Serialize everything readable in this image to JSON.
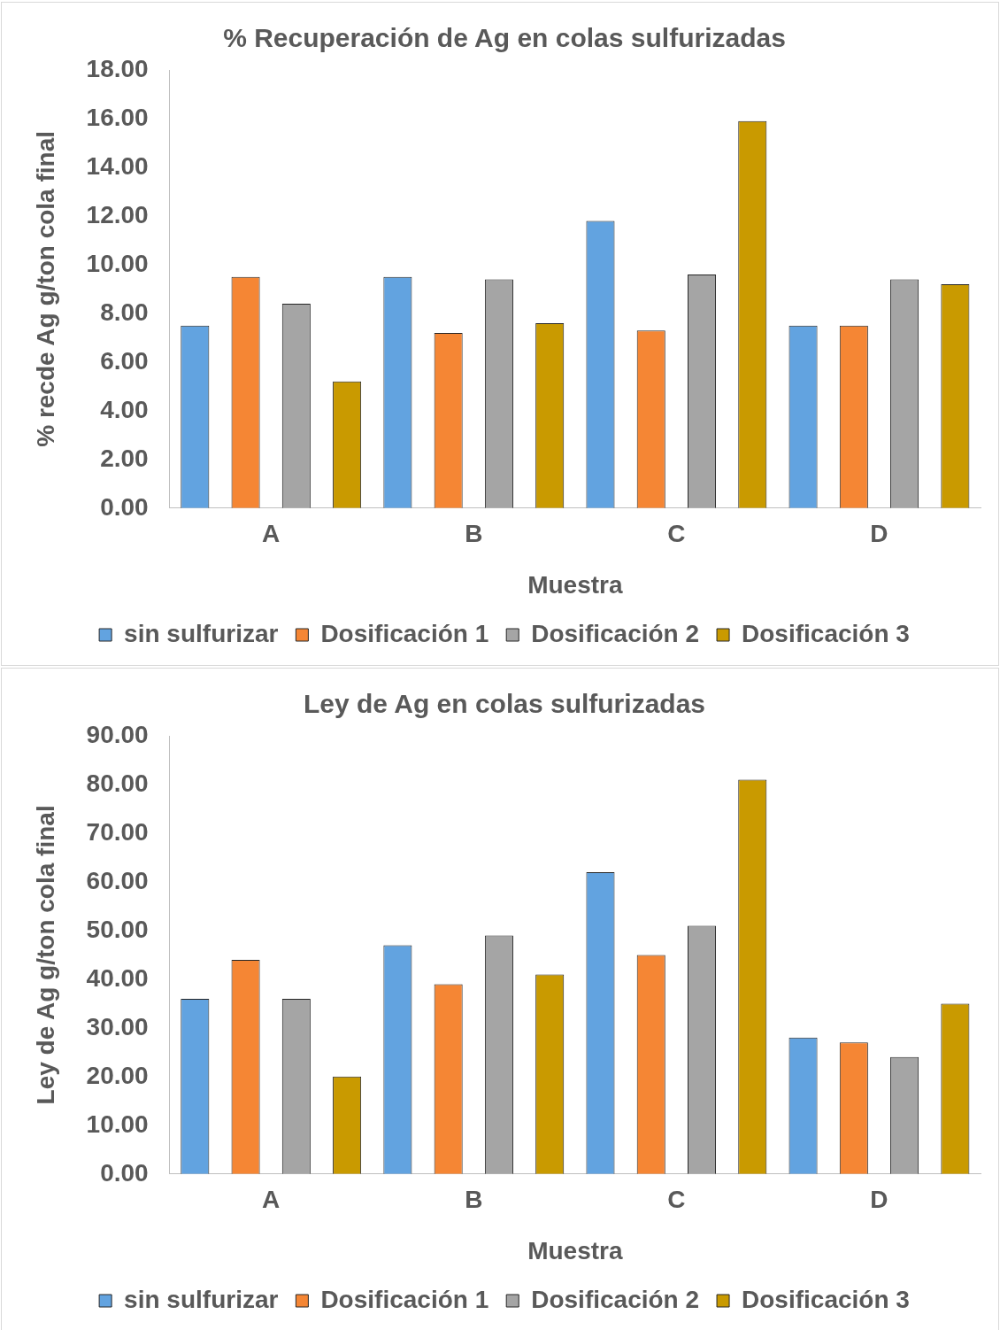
{
  "chart_data": [
    {
      "type": "bar",
      "title": "% Recuperación de Ag en colas sulfurizadas",
      "xlabel": "Muestra",
      "ylabel": "% recde Ag g/ton cola final",
      "categories": [
        "A",
        "B",
        "C",
        "D"
      ],
      "series": [
        {
          "name": "sin sulfurizar",
          "color": "#62a3e0",
          "values": [
            7.5,
            9.5,
            11.8,
            7.5
          ]
        },
        {
          "name": "Dosificación 1",
          "color": "#f58634",
          "values": [
            9.5,
            7.2,
            7.3,
            7.5
          ]
        },
        {
          "name": "Dosificación 2",
          "color": "#a5a5a5",
          "values": [
            8.4,
            9.4,
            9.6,
            9.4
          ]
        },
        {
          "name": "Dosificación 3",
          "color": "#c99a00",
          "values": [
            5.2,
            7.6,
            15.9,
            9.2
          ]
        }
      ],
      "ylim": [
        0,
        18
      ],
      "yticks": [
        {
          "value": 0,
          "label": "0.00"
        },
        {
          "value": 2,
          "label": "2.00"
        },
        {
          "value": 4,
          "label": "4.00"
        },
        {
          "value": 6,
          "label": "6.00"
        },
        {
          "value": 8,
          "label": "8.00"
        },
        {
          "value": 10,
          "label": "10.00"
        },
        {
          "value": 12,
          "label": "12.00"
        },
        {
          "value": 14,
          "label": "14.00"
        },
        {
          "value": 16,
          "label": "16.00"
        },
        {
          "value": 18,
          "label": "18.00"
        }
      ],
      "grid": false,
      "legend": "bottom"
    },
    {
      "type": "bar",
      "title": "Ley de Ag en colas sulfurizadas",
      "xlabel": "Muestra",
      "ylabel": "Ley de Ag g/ton cola final",
      "categories": [
        "A",
        "B",
        "C",
        "D"
      ],
      "series": [
        {
          "name": "sin sulfurizar",
          "color": "#62a3e0",
          "values": [
            36,
            47,
            62,
            28
          ]
        },
        {
          "name": "Dosificación 1",
          "color": "#f58634",
          "values": [
            44,
            39,
            45,
            27
          ]
        },
        {
          "name": "Dosificación 2",
          "color": "#a5a5a5",
          "values": [
            36,
            49,
            51,
            24
          ]
        },
        {
          "name": "Dosificación 3",
          "color": "#c99a00",
          "values": [
            20,
            41,
            81,
            35
          ]
        }
      ],
      "ylim": [
        0,
        90
      ],
      "yticks": [
        {
          "value": 0,
          "label": "0.00"
        },
        {
          "value": 10,
          "label": "10.00"
        },
        {
          "value": 20,
          "label": "20.00"
        },
        {
          "value": 30,
          "label": "30.00"
        },
        {
          "value": 40,
          "label": "40.00"
        },
        {
          "value": 50,
          "label": "50.00"
        },
        {
          "value": 60,
          "label": "60.00"
        },
        {
          "value": 70,
          "label": "70.00"
        },
        {
          "value": 80,
          "label": "80.00"
        },
        {
          "value": 90,
          "label": "90.00"
        }
      ],
      "grid": false,
      "legend": "bottom"
    }
  ]
}
